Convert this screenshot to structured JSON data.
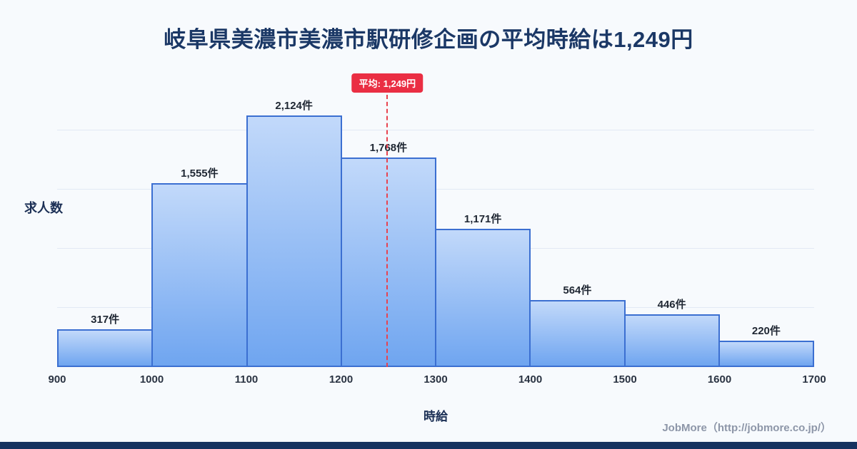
{
  "title": "岐阜県美濃市美濃市駅研修企画の平均時給は1,249円",
  "chart_data": {
    "type": "bar",
    "bin_edges": [
      900,
      1000,
      1100,
      1200,
      1300,
      1400,
      1500,
      1600,
      1700
    ],
    "x_tick_labels": [
      "900",
      "1000",
      "1100",
      "1200",
      "1300",
      "1400",
      "1500",
      "1600",
      "1700"
    ],
    "values": [
      317,
      1555,
      2124,
      1768,
      1171,
      564,
      446,
      220
    ],
    "bar_labels": [
      "317件",
      "1,555件",
      "2,124件",
      "1,768件",
      "1,171件",
      "564件",
      "446件",
      "220件"
    ],
    "xlabel": "時給",
    "ylabel": "求人数",
    "ylim": [
      0,
      2300
    ],
    "gridline_values": [
      500,
      1000,
      1500,
      2000
    ],
    "grid": true,
    "legend_position": "none",
    "average": {
      "value": 1249,
      "label": "平均: 1,249円"
    }
  },
  "footer": {
    "credit": "JobMore（http://jobmore.co.jp/）"
  },
  "colors": {
    "background": "#f7fafd",
    "title_text": "#1b3866",
    "bar_fill_top": "#c2d9fa",
    "bar_fill_bottom": "#6fa5f0",
    "bar_border": "#3b6fd1",
    "gridline": "#e2e9f4",
    "average_accent": "#ea2e43",
    "footer_bar": "#16335f",
    "footer_text": "#8d96a8"
  }
}
